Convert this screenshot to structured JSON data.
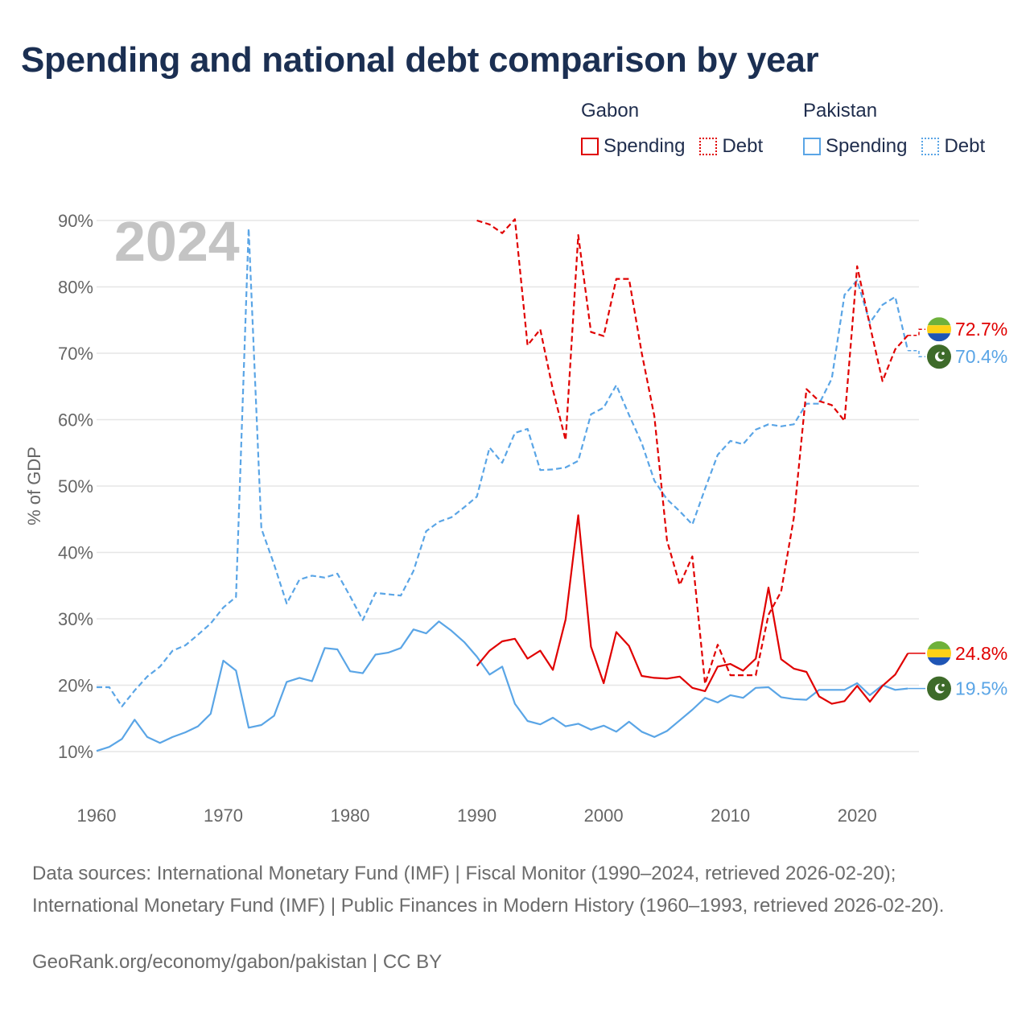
{
  "title": "Spending and national debt comparison by year",
  "legend": {
    "groups": [
      {
        "country": "Gabon",
        "color": "#e00000",
        "items": [
          {
            "label": "Spending",
            "style": "solid"
          },
          {
            "label": "Debt",
            "style": "dotted"
          }
        ]
      },
      {
        "country": "Pakistan",
        "color": "#5aa5e6",
        "items": [
          {
            "label": "Spending",
            "style": "solid"
          },
          {
            "label": "Debt",
            "style": "dotted"
          }
        ]
      }
    ]
  },
  "chart_data": {
    "type": "line",
    "ylabel": "% of GDP",
    "xlabel": "",
    "ylim": [
      10,
      90
    ],
    "xlim": [
      1960,
      2025
    ],
    "xticks": [
      1960,
      1970,
      1980,
      1990,
      2000,
      2010,
      2020
    ],
    "xtick_labels": [
      "1960",
      "1970",
      "1980",
      "1990",
      "2000",
      "2010",
      "2020"
    ],
    "yticks": [
      10,
      20,
      30,
      40,
      50,
      60,
      70,
      80,
      90
    ],
    "ytick_labels": [
      "10%",
      "20%",
      "30%",
      "40%",
      "50%",
      "60%",
      "70%",
      "80%",
      "90%"
    ],
    "year_watermark": "2024",
    "series": [
      {
        "name": "Pakistan Debt",
        "country": "Pakistan",
        "metric": "Debt",
        "color": "#5aa5e6",
        "dash": true,
        "x": [
          1960,
          1961,
          1962,
          1963,
          1964,
          1965,
          1966,
          1967,
          1968,
          1969,
          1970,
          1971,
          1972,
          1973,
          1974,
          1975,
          1976,
          1977,
          1978,
          1979,
          1980,
          1981,
          1982,
          1983,
          1984,
          1985,
          1986,
          1987,
          1988,
          1989,
          1990,
          1991,
          1992,
          1993,
          1994,
          1995,
          1996,
          1997,
          1998,
          1999,
          2000,
          2001,
          2002,
          2003,
          2004,
          2005,
          2006,
          2007,
          2008,
          2009,
          2010,
          2011,
          2012,
          2013,
          2014,
          2015,
          2016,
          2017,
          2018,
          2019,
          2020,
          2021,
          2022,
          2023,
          2024
        ],
        "values": [
          19.7,
          19.7,
          16.8,
          19.2,
          21.3,
          22.8,
          25.2,
          26.0,
          27.6,
          29.3,
          31.7,
          33.3,
          88.8,
          43.6,
          38.2,
          32.3,
          35.9,
          36.5,
          36.2,
          36.8,
          33.4,
          29.8,
          33.9,
          33.7,
          33.5,
          37.2,
          43.2,
          44.6,
          45.3,
          46.8,
          48.4,
          55.8,
          53.5,
          58.0,
          58.6,
          52.4,
          52.5,
          52.8,
          53.8,
          60.8,
          61.8,
          65.2,
          60.7,
          56.5,
          50.8,
          48.0,
          46.2,
          44.2,
          49.6,
          54.7,
          56.8,
          56.3,
          58.5,
          59.3,
          59.0,
          59.3,
          62.4,
          62.4,
          66.2,
          78.8,
          81.0,
          74.6,
          77.3,
          78.5,
          70.4
        ],
        "end_label": "70.4%",
        "flag": "Pakistan"
      },
      {
        "name": "Pakistan Spending",
        "country": "Pakistan",
        "metric": "Spending",
        "color": "#5aa5e6",
        "dash": false,
        "x": [
          1960,
          1961,
          1962,
          1963,
          1964,
          1965,
          1966,
          1967,
          1968,
          1969,
          1970,
          1971,
          1972,
          1973,
          1974,
          1975,
          1976,
          1977,
          1978,
          1979,
          1980,
          1981,
          1982,
          1983,
          1984,
          1985,
          1986,
          1987,
          1988,
          1989,
          1990,
          1991,
          1992,
          1993,
          1994,
          1995,
          1996,
          1997,
          1998,
          1999,
          2000,
          2001,
          2002,
          2003,
          2004,
          2005,
          2006,
          2007,
          2008,
          2009,
          2010,
          2011,
          2012,
          2013,
          2014,
          2015,
          2016,
          2017,
          2018,
          2019,
          2020,
          2021,
          2022,
          2023,
          2024
        ],
        "values": [
          10.1,
          10.7,
          11.9,
          14.8,
          12.2,
          11.3,
          12.2,
          12.9,
          13.8,
          15.7,
          23.7,
          22.2,
          13.6,
          14.0,
          15.4,
          20.5,
          21.1,
          20.6,
          25.6,
          25.4,
          22.1,
          21.8,
          24.6,
          24.9,
          25.6,
          28.4,
          27.8,
          29.6,
          28.2,
          26.5,
          24.3,
          21.6,
          22.8,
          17.2,
          14.6,
          14.1,
          15.1,
          13.8,
          14.2,
          13.3,
          13.9,
          13.0,
          14.5,
          13.0,
          12.2,
          13.1,
          14.7,
          16.3,
          18.1,
          17.4,
          18.5,
          18.1,
          19.6,
          19.7,
          18.2,
          17.9,
          17.8,
          19.3,
          19.3,
          19.3,
          20.3,
          18.5,
          20.0,
          19.3,
          19.5
        ],
        "end_label": "19.5%",
        "flag": "Pakistan"
      },
      {
        "name": "Gabon Debt",
        "country": "Gabon",
        "metric": "Debt",
        "color": "#e00000",
        "dash": true,
        "x": [
          1990,
          1991,
          1992,
          1993,
          1994,
          1995,
          1996,
          1997,
          1998,
          1999,
          2000,
          2001,
          2002,
          2003,
          2004,
          2005,
          2006,
          2007,
          2008,
          2009,
          2010,
          2011,
          2012,
          2013,
          2014,
          2015,
          2016,
          2017,
          2018,
          2019,
          2020,
          2021,
          2022,
          2023,
          2024
        ],
        "values": [
          90.0,
          89.4,
          88.1,
          90.2,
          71.2,
          73.6,
          64.5,
          56.9,
          87.8,
          73.2,
          72.6,
          81.2,
          81.2,
          70.1,
          60.5,
          41.8,
          35.1,
          39.4,
          20.2,
          26.1,
          21.5,
          21.5,
          21.5,
          30.6,
          34.1,
          45.2,
          64.6,
          62.8,
          62.2,
          59.8,
          83.1,
          74.2,
          65.8,
          70.6,
          72.7
        ],
        "end_label": "72.7%",
        "flag": "Gabon"
      },
      {
        "name": "Gabon Spending",
        "country": "Gabon",
        "metric": "Spending",
        "color": "#e00000",
        "dash": false,
        "x": [
          1990,
          1991,
          1992,
          1993,
          1994,
          1995,
          1996,
          1997,
          1998,
          1999,
          2000,
          2001,
          2002,
          2003,
          2004,
          2005,
          2006,
          2007,
          2008,
          2009,
          2010,
          2011,
          2012,
          2013,
          2014,
          2015,
          2016,
          2017,
          2018,
          2019,
          2020,
          2021,
          2022,
          2023,
          2024
        ],
        "values": [
          22.9,
          25.2,
          26.6,
          27.0,
          24.0,
          25.2,
          22.3,
          29.9,
          45.6,
          25.8,
          20.3,
          28.0,
          25.9,
          21.4,
          21.1,
          21.0,
          21.3,
          19.6,
          19.1,
          22.8,
          23.2,
          22.2,
          24.0,
          34.7,
          23.9,
          22.5,
          22.0,
          18.3,
          17.2,
          17.6,
          19.9,
          17.5,
          19.9,
          21.6,
          24.8
        ],
        "end_label": "24.8%",
        "flag": "Gabon"
      }
    ]
  },
  "sources": {
    "text": "Data sources: International Monetary Fund (IMF) | Fiscal Monitor (1990–2024, retrieved 2026-02-20); International Monetary Fund (IMF) | Public Finances in Modern History (1960–1993, retrieved 2026-02-20).",
    "credit": "GeoRank.org/economy/gabon/pakistan | CC BY"
  }
}
